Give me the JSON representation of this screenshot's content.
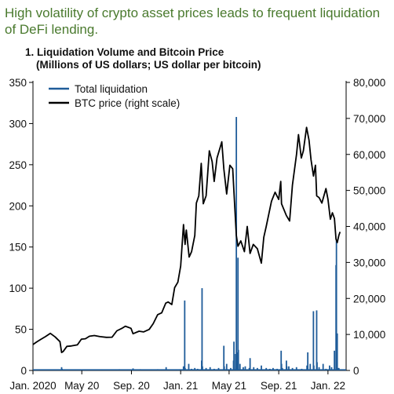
{
  "headline": "High volatility of crypto asset prices leads to frequent liquidation of DeFi lending.",
  "chart_data": {
    "type": "line",
    "title_line1": "1. Liquidation Volume and Bitcoin Price",
    "title_line2": "(Millions of US dollars; US dollar per bitcoin)",
    "x_range": [
      "2020-01-01",
      "2022-02-15"
    ],
    "x_ticks": [
      {
        "date": "2020-01-01",
        "label": "Jan. 2020"
      },
      {
        "date": "2020-05-01",
        "label": "May 20"
      },
      {
        "date": "2020-09-01",
        "label": "Sep. 20"
      },
      {
        "date": "2021-01-01",
        "label": "Jan. 21"
      },
      {
        "date": "2021-05-01",
        "label": "May 21"
      },
      {
        "date": "2021-09-01",
        "label": "Sep. 21"
      },
      {
        "date": "2022-01-01",
        "label": "Jan. 22"
      }
    ],
    "y_left": {
      "min": 0,
      "max": 350,
      "ticks": [
        "0",
        "50",
        "100",
        "150",
        "200",
        "250",
        "300",
        "350"
      ]
    },
    "y_right": {
      "min": 0,
      "max": 80000,
      "ticks": [
        "0",
        "10,000",
        "20,000",
        "30,000",
        "40,000",
        "50,000",
        "60,000",
        "70,000",
        "80,000"
      ]
    },
    "legend_position": "top-left",
    "series": [
      {
        "name": "Total liquidation",
        "axis": "left",
        "style": "bars",
        "color": "#1f5c99",
        "points": [
          [
            "2020-01-15",
            0.5
          ],
          [
            "2020-02-10",
            1
          ],
          [
            "2020-03-12",
            4
          ],
          [
            "2020-03-13",
            2
          ],
          [
            "2020-04-15",
            0.5
          ],
          [
            "2020-05-10",
            1
          ],
          [
            "2020-06-20",
            0.5
          ],
          [
            "2020-07-25",
            1
          ],
          [
            "2020-08-02",
            1.5
          ],
          [
            "2020-08-25",
            1
          ],
          [
            "2020-09-05",
            2.5
          ],
          [
            "2020-09-23",
            1.5
          ],
          [
            "2020-10-20",
            1
          ],
          [
            "2020-11-05",
            1.5
          ],
          [
            "2020-11-15",
            0.5
          ],
          [
            "2020-11-26",
            4
          ],
          [
            "2020-12-20",
            1
          ],
          [
            "2020-12-31",
            1.5
          ],
          [
            "2021-01-08",
            5
          ],
          [
            "2021-01-11",
            85
          ],
          [
            "2021-01-12",
            3
          ],
          [
            "2021-01-21",
            8
          ],
          [
            "2021-01-28",
            2
          ],
          [
            "2021-02-05",
            3
          ],
          [
            "2021-02-12",
            2
          ],
          [
            "2021-02-22",
            12
          ],
          [
            "2021-02-23",
            100
          ],
          [
            "2021-02-24",
            5
          ],
          [
            "2021-03-05",
            3
          ],
          [
            "2021-03-15",
            4
          ],
          [
            "2021-03-25",
            2
          ],
          [
            "2021-04-05",
            3
          ],
          [
            "2021-04-18",
            30
          ],
          [
            "2021-04-19",
            5
          ],
          [
            "2021-04-25",
            8
          ],
          [
            "2021-05-05",
            3
          ],
          [
            "2021-05-12",
            12
          ],
          [
            "2021-05-13",
            35
          ],
          [
            "2021-05-17",
            20
          ],
          [
            "2021-05-19",
            308
          ],
          [
            "2021-05-20",
            22
          ],
          [
            "2021-05-23",
            137
          ],
          [
            "2021-05-24",
            25
          ],
          [
            "2021-05-28",
            8
          ],
          [
            "2021-06-05",
            4
          ],
          [
            "2021-06-10",
            5
          ],
          [
            "2021-06-20",
            3
          ],
          [
            "2021-06-22",
            15
          ],
          [
            "2021-07-01",
            4
          ],
          [
            "2021-07-10",
            3
          ],
          [
            "2021-07-20",
            6
          ],
          [
            "2021-08-01",
            3
          ],
          [
            "2021-08-10",
            2
          ],
          [
            "2021-08-18",
            3
          ],
          [
            "2021-08-28",
            2
          ],
          [
            "2021-09-07",
            24
          ],
          [
            "2021-09-08",
            8
          ],
          [
            "2021-09-10",
            3
          ],
          [
            "2021-09-20",
            12
          ],
          [
            "2021-09-21",
            5
          ],
          [
            "2021-09-26",
            5
          ],
          [
            "2021-10-05",
            3
          ],
          [
            "2021-10-15",
            4
          ],
          [
            "2021-10-28",
            2
          ],
          [
            "2021-11-10",
            6
          ],
          [
            "2021-11-12",
            22
          ],
          [
            "2021-11-18",
            8
          ],
          [
            "2021-11-26",
            72
          ],
          [
            "2021-11-27",
            6
          ],
          [
            "2021-12-04",
            73
          ],
          [
            "2021-12-05",
            10
          ],
          [
            "2021-12-10",
            4
          ],
          [
            "2021-12-20",
            8
          ],
          [
            "2021-12-27",
            2
          ],
          [
            "2022-01-05",
            6
          ],
          [
            "2022-01-10",
            4
          ],
          [
            "2022-01-17",
            24
          ],
          [
            "2022-01-21",
            128
          ],
          [
            "2022-01-22",
            158
          ],
          [
            "2022-01-23",
            10
          ],
          [
            "2022-01-24",
            45
          ],
          [
            "2022-01-25",
            3
          ],
          [
            "2022-01-28",
            3
          ]
        ]
      },
      {
        "name": "BTC price (right scale)",
        "axis": "right",
        "style": "line",
        "color": "#000000",
        "points": [
          [
            "2020-01-01",
            7200
          ],
          [
            "2020-01-10",
            7900
          ],
          [
            "2020-01-20",
            8600
          ],
          [
            "2020-02-01",
            9400
          ],
          [
            "2020-02-13",
            10300
          ],
          [
            "2020-02-25",
            9300
          ],
          [
            "2020-03-08",
            8000
          ],
          [
            "2020-03-12",
            5000
          ],
          [
            "2020-03-16",
            5300
          ],
          [
            "2020-03-25",
            6700
          ],
          [
            "2020-04-05",
            6800
          ],
          [
            "2020-04-20",
            7100
          ],
          [
            "2020-04-30",
            8700
          ],
          [
            "2020-05-10",
            8800
          ],
          [
            "2020-05-20",
            9500
          ],
          [
            "2020-06-01",
            9700
          ],
          [
            "2020-06-15",
            9400
          ],
          [
            "2020-07-01",
            9200
          ],
          [
            "2020-07-15",
            9250
          ],
          [
            "2020-07-27",
            11000
          ],
          [
            "2020-08-10",
            11800
          ],
          [
            "2020-08-17",
            12300
          ],
          [
            "2020-08-31",
            11700
          ],
          [
            "2020-09-05",
            10200
          ],
          [
            "2020-09-20",
            10900
          ],
          [
            "2020-10-01",
            10700
          ],
          [
            "2020-10-15",
            11400
          ],
          [
            "2020-10-25",
            13000
          ],
          [
            "2020-11-05",
            15500
          ],
          [
            "2020-11-15",
            16000
          ],
          [
            "2020-11-25",
            18700
          ],
          [
            "2020-12-01",
            19000
          ],
          [
            "2020-12-10",
            18300
          ],
          [
            "2020-12-17",
            23000
          ],
          [
            "2020-12-25",
            24500
          ],
          [
            "2021-01-01",
            29000
          ],
          [
            "2021-01-08",
            40500
          ],
          [
            "2021-01-12",
            35000
          ],
          [
            "2021-01-15",
            39000
          ],
          [
            "2021-01-22",
            31500
          ],
          [
            "2021-01-28",
            33000
          ],
          [
            "2021-02-05",
            37500
          ],
          [
            "2021-02-09",
            46500
          ],
          [
            "2021-02-15",
            48500
          ],
          [
            "2021-02-21",
            57500
          ],
          [
            "2021-02-26",
            46300
          ],
          [
            "2021-03-05",
            48500
          ],
          [
            "2021-03-13",
            61000
          ],
          [
            "2021-03-20",
            58000
          ],
          [
            "2021-03-25",
            52500
          ],
          [
            "2021-04-01",
            59000
          ],
          [
            "2021-04-13",
            63500
          ],
          [
            "2021-04-18",
            56000
          ],
          [
            "2021-04-25",
            49000
          ],
          [
            "2021-05-03",
            57000
          ],
          [
            "2021-05-10",
            56000
          ],
          [
            "2021-05-13",
            49500
          ],
          [
            "2021-05-19",
            37500
          ],
          [
            "2021-05-23",
            34500
          ],
          [
            "2021-05-30",
            36000
          ],
          [
            "2021-06-08",
            33000
          ],
          [
            "2021-06-15",
            40000
          ],
          [
            "2021-06-22",
            32500
          ],
          [
            "2021-06-30",
            35000
          ],
          [
            "2021-07-10",
            33800
          ],
          [
            "2021-07-20",
            29800
          ],
          [
            "2021-07-26",
            37000
          ],
          [
            "2021-08-01",
            40000
          ],
          [
            "2021-08-14",
            47000
          ],
          [
            "2021-08-23",
            49500
          ],
          [
            "2021-09-01",
            47500
          ],
          [
            "2021-09-06",
            52500
          ],
          [
            "2021-09-08",
            46300
          ],
          [
            "2021-09-20",
            43000
          ],
          [
            "2021-09-28",
            41500
          ],
          [
            "2021-10-05",
            51500
          ],
          [
            "2021-10-15",
            60000
          ],
          [
            "2021-10-20",
            65500
          ],
          [
            "2021-10-27",
            59000
          ],
          [
            "2021-11-01",
            61000
          ],
          [
            "2021-11-09",
            67500
          ],
          [
            "2021-11-15",
            64000
          ],
          [
            "2021-11-20",
            58500
          ],
          [
            "2021-11-26",
            54000
          ],
          [
            "2021-12-01",
            57000
          ],
          [
            "2021-12-04",
            48500
          ],
          [
            "2021-12-10",
            48000
          ],
          [
            "2021-12-17",
            46500
          ],
          [
            "2021-12-27",
            50500
          ],
          [
            "2022-01-01",
            47500
          ],
          [
            "2022-01-07",
            42000
          ],
          [
            "2022-01-12",
            43800
          ],
          [
            "2022-01-17",
            42200
          ],
          [
            "2022-01-21",
            36500
          ],
          [
            "2022-01-24",
            35500
          ],
          [
            "2022-01-28",
            37500
          ],
          [
            "2022-01-31",
            38500
          ]
        ]
      }
    ]
  },
  "colors": {
    "liquidation": "#1f5c99",
    "btc": "#000000",
    "headline": "#4a7a2e"
  }
}
